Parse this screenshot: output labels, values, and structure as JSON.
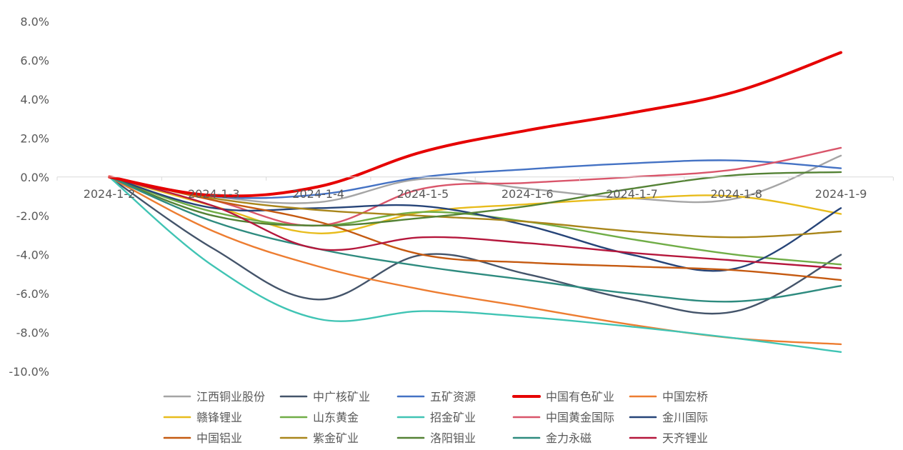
{
  "chart_data": {
    "type": "line",
    "x": [
      "2024-1-2",
      "2024-1-3",
      "2024-1-4",
      "2024-1-5",
      "2024-1-6",
      "2024-1-7",
      "2024-1-8",
      "2024-1-9"
    ],
    "ylim": [
      -10,
      8
    ],
    "y_ticks": [
      8,
      6,
      4,
      2,
      0,
      -2,
      -4,
      -6,
      -8,
      -10
    ],
    "y_tick_labels": [
      "8.0%",
      "6.0%",
      "4.0%",
      "2.0%",
      "0.0%",
      "-2.0%",
      "-4.0%",
      "-6.0%",
      "-8.0%",
      "-10.0%"
    ],
    "grid": false,
    "legend_position": "bottom",
    "series": [
      {
        "name": "江西铜业股份",
        "color": "#a5a5a5",
        "values": [
          0,
          -1.0,
          -1.3,
          -0.1,
          -0.6,
          -1.1,
          -1.1,
          1.1
        ]
      },
      {
        "name": "中广核矿业",
        "color": "#44546a",
        "values": [
          0,
          -3.7,
          -6.3,
          -4.0,
          -5.0,
          -6.3,
          -6.9,
          -4.0
        ]
      },
      {
        "name": "五矿资源",
        "color": "#4472c4",
        "values": [
          0,
          -1.0,
          -0.9,
          0.0,
          0.4,
          0.7,
          0.85,
          0.45
        ]
      },
      {
        "name": "中国有色矿业",
        "color": "#e60000",
        "values": [
          0,
          -0.95,
          -0.5,
          1.3,
          2.4,
          3.3,
          4.4,
          6.4
        ],
        "bold": true
      },
      {
        "name": "中国宏桥",
        "color": "#ed7d31",
        "values": [
          0,
          -2.8,
          -4.6,
          -5.8,
          -6.7,
          -7.6,
          -8.3,
          -8.6
        ]
      },
      {
        "name": "赣锋锂业",
        "color": "#e8bc1c",
        "values": [
          0,
          -1.5,
          -2.9,
          -1.8,
          -1.4,
          -1.1,
          -1.0,
          -1.9
        ]
      },
      {
        "name": "山东黄金",
        "color": "#70ad47",
        "values": [
          0,
          -1.8,
          -2.5,
          -1.8,
          -2.3,
          -3.2,
          -4.0,
          -4.5
        ]
      },
      {
        "name": "招金矿业",
        "color": "#40c4b4",
        "values": [
          0,
          -4.6,
          -7.3,
          -6.9,
          -7.2,
          -7.7,
          -8.3,
          -9.0
        ]
      },
      {
        "name": "中国黄金国际",
        "color": "#d9556a",
        "values": [
          0,
          -1.2,
          -2.5,
          -0.6,
          -0.3,
          0.0,
          0.4,
          1.5
        ]
      },
      {
        "name": "金川国际",
        "color": "#264478",
        "values": [
          0,
          -1.6,
          -1.6,
          -1.5,
          -2.5,
          -4.0,
          -4.7,
          -1.6
        ]
      },
      {
        "name": "中国铝业",
        "color": "#c55a11",
        "values": [
          0,
          -1.2,
          -2.3,
          -4.0,
          -4.4,
          -4.6,
          -4.8,
          -5.3
        ]
      },
      {
        "name": "紫金矿业",
        "color": "#a9861b",
        "values": [
          0,
          -1.1,
          -1.7,
          -2.0,
          -2.3,
          -2.8,
          -3.1,
          -2.8
        ]
      },
      {
        "name": "洛阳钼业",
        "color": "#548235",
        "values": [
          0,
          -2.0,
          -2.5,
          -2.1,
          -1.5,
          -0.6,
          0.1,
          0.25
        ]
      },
      {
        "name": "金力永磁",
        "color": "#2e8b7f",
        "values": [
          0,
          -2.3,
          -3.7,
          -4.6,
          -5.3,
          -6.0,
          -6.4,
          -5.6
        ]
      },
      {
        "name": "天齐锂业",
        "color": "#b5173c",
        "values": [
          0,
          -1.5,
          -3.7,
          -3.1,
          -3.4,
          -3.9,
          -4.3,
          -4.7
        ]
      }
    ]
  }
}
